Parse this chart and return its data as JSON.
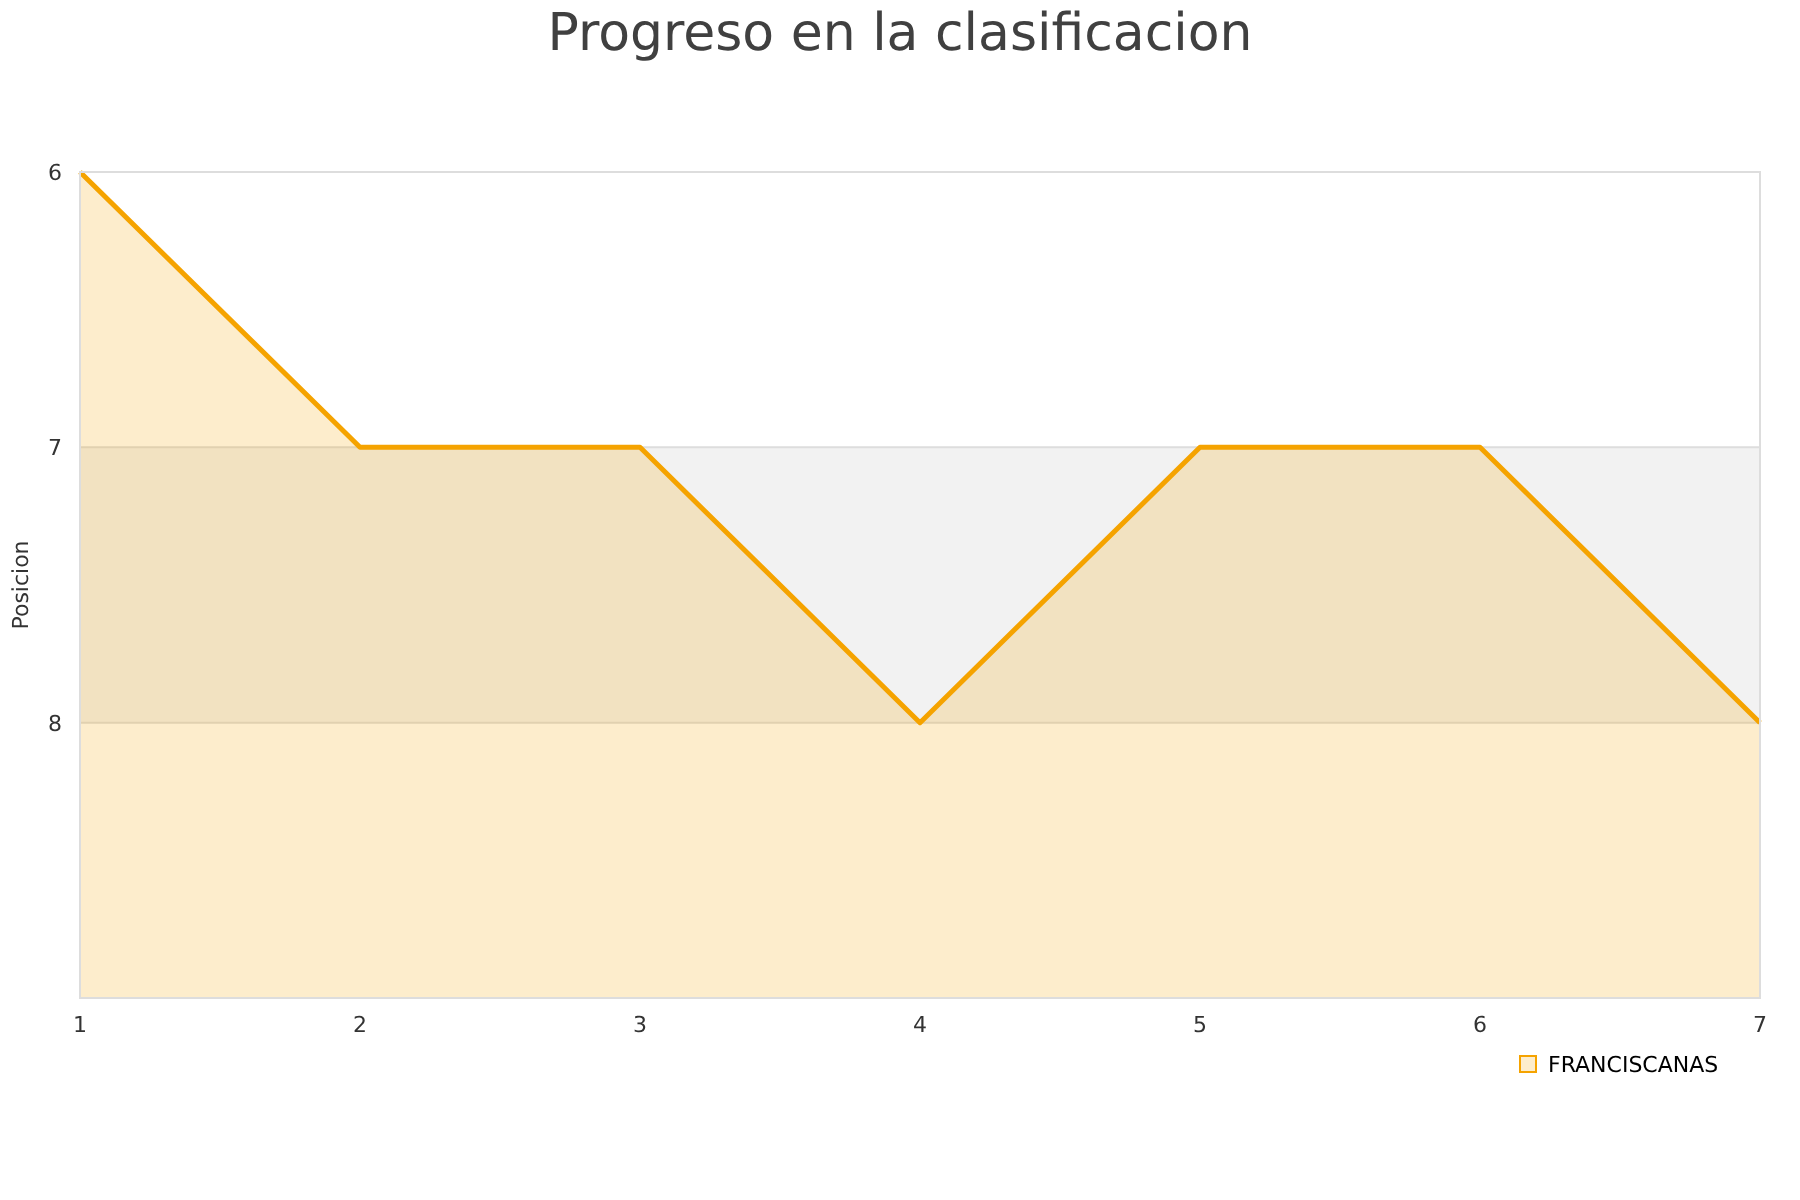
{
  "chart_data": {
    "type": "line",
    "title": "Progreso en la clasificacion",
    "ylabel": "Posicion",
    "x": [
      1,
      2,
      3,
      4,
      5,
      6,
      7
    ],
    "series": [
      {
        "name": "FRANCISCANAS",
        "color": "#f5a300",
        "values": [
          6,
          7,
          7,
          8,
          7,
          7,
          8
        ],
        "lower": [
          9,
          9,
          9,
          9,
          9,
          9,
          9
        ],
        "upper": [
          6,
          7,
          7,
          8,
          7,
          7,
          8
        ]
      }
    ],
    "xlim": [
      1,
      7
    ],
    "xticks": [
      1,
      2,
      3,
      4,
      5,
      6,
      7
    ],
    "ylim": [
      9,
      6
    ],
    "yticks": [
      6,
      7,
      8
    ],
    "bands": [
      {
        "axis": "y",
        "from": 7,
        "to": 8,
        "color": "#f2f2f2"
      }
    ],
    "grid": "y",
    "legend": "bottom right",
    "marker": "none",
    "line_style": "solid"
  }
}
